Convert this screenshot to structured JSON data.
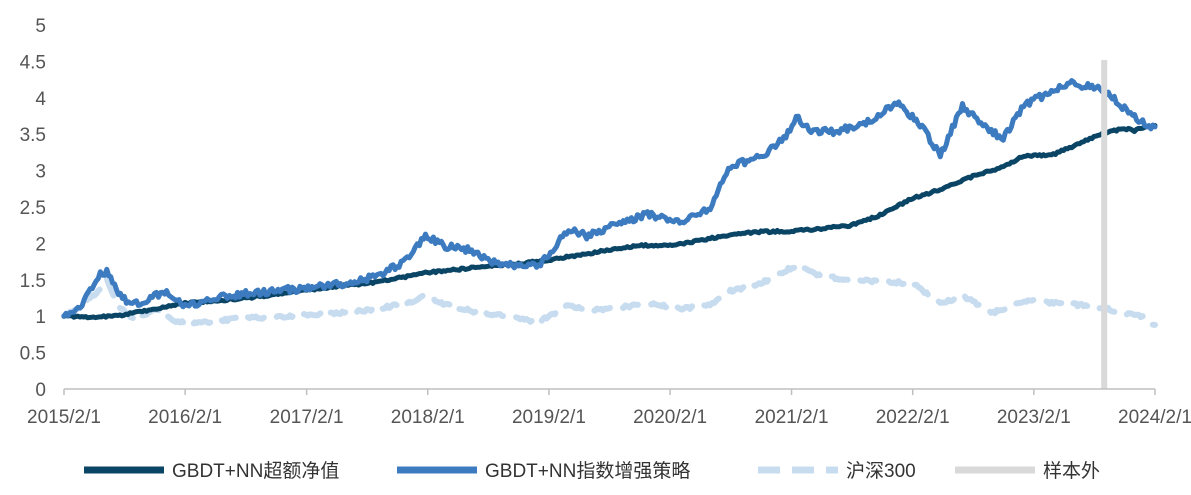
{
  "chart_data": {
    "type": "line",
    "title": "",
    "xlabel": "",
    "ylabel": "",
    "x_tick_labels": [
      "2015/2/1",
      "2016/2/1",
      "2017/2/1",
      "2018/2/1",
      "2019/2/1",
      "2020/2/1",
      "2021/2/1",
      "2022/2/1",
      "2023/2/1",
      "2024/2/1"
    ],
    "x_tick_dates": [
      "2015-02-01",
      "2016-02-01",
      "2017-02-01",
      "2018-02-01",
      "2019-02-01",
      "2020-02-01",
      "2021-02-01",
      "2022-02-01",
      "2023-02-01",
      "2024-02-01"
    ],
    "x_range": [
      "2015-02-01",
      "2024-02-01"
    ],
    "ylim": [
      0,
      5
    ],
    "y_ticks": [
      0,
      0.5,
      1,
      1.5,
      2,
      2.5,
      3,
      3.5,
      4,
      4.5,
      5
    ],
    "grid": false,
    "legend_position": "bottom",
    "series": [
      {
        "name": "GBDT+NN超额净值",
        "color": "#0b4566",
        "style": "solid",
        "points": [
          [
            "2015-02-01",
            1.0
          ],
          [
            "2015-05-01",
            0.98
          ],
          [
            "2015-08-01",
            1.02
          ],
          [
            "2015-11-01",
            1.1
          ],
          [
            "2016-02-01",
            1.18
          ],
          [
            "2016-05-01",
            1.21
          ],
          [
            "2016-08-01",
            1.25
          ],
          [
            "2016-11-01",
            1.3
          ],
          [
            "2017-02-01",
            1.36
          ],
          [
            "2017-05-01",
            1.41
          ],
          [
            "2017-08-01",
            1.45
          ],
          [
            "2017-11-01",
            1.52
          ],
          [
            "2018-02-01",
            1.6
          ],
          [
            "2018-05-01",
            1.64
          ],
          [
            "2018-08-01",
            1.69
          ],
          [
            "2018-11-01",
            1.72
          ],
          [
            "2019-02-01",
            1.77
          ],
          [
            "2019-05-01",
            1.84
          ],
          [
            "2019-08-01",
            1.91
          ],
          [
            "2019-11-01",
            1.97
          ],
          [
            "2020-02-01",
            1.97
          ],
          [
            "2020-05-01",
            2.04
          ],
          [
            "2020-08-01",
            2.12
          ],
          [
            "2020-11-01",
            2.16
          ],
          [
            "2021-02-01",
            2.17
          ],
          [
            "2021-05-01",
            2.2
          ],
          [
            "2021-08-01",
            2.25
          ],
          [
            "2021-11-01",
            2.4
          ],
          [
            "2022-02-01",
            2.62
          ],
          [
            "2022-05-01",
            2.75
          ],
          [
            "2022-08-01",
            2.92
          ],
          [
            "2022-11-01",
            3.05
          ],
          [
            "2023-01-01",
            3.2
          ],
          [
            "2023-04-01",
            3.22
          ],
          [
            "2023-07-01",
            3.4
          ],
          [
            "2023-09-01",
            3.52
          ],
          [
            "2023-11-01",
            3.58
          ],
          [
            "2023-12-01",
            3.55
          ],
          [
            "2024-01-01",
            3.6
          ],
          [
            "2024-02-01",
            3.62
          ]
        ]
      },
      {
        "name": "GBDT+NN指数增强策略",
        "color": "#3c7bbf",
        "style": "solid",
        "points": [
          [
            "2015-02-01",
            1.0
          ],
          [
            "2015-03-15",
            1.1
          ],
          [
            "2015-04-15",
            1.3
          ],
          [
            "2015-05-15",
            1.55
          ],
          [
            "2015-06-10",
            1.62
          ],
          [
            "2015-07-15",
            1.3
          ],
          [
            "2015-08-20",
            1.15
          ],
          [
            "2015-10-01",
            1.2
          ],
          [
            "2015-12-01",
            1.35
          ],
          [
            "2016-02-01",
            1.12
          ],
          [
            "2016-04-01",
            1.2
          ],
          [
            "2016-06-01",
            1.28
          ],
          [
            "2016-09-01",
            1.32
          ],
          [
            "2016-12-01",
            1.36
          ],
          [
            "2017-03-01",
            1.4
          ],
          [
            "2017-06-01",
            1.45
          ],
          [
            "2017-09-01",
            1.55
          ],
          [
            "2017-12-01",
            1.78
          ],
          [
            "2018-01-25",
            2.1
          ],
          [
            "2018-04-01",
            1.95
          ],
          [
            "2018-06-01",
            1.92
          ],
          [
            "2018-09-01",
            1.72
          ],
          [
            "2018-11-01",
            1.7
          ],
          [
            "2019-01-01",
            1.68
          ],
          [
            "2019-04-01",
            2.18
          ],
          [
            "2019-06-01",
            2.1
          ],
          [
            "2019-09-01",
            2.28
          ],
          [
            "2019-12-01",
            2.4
          ],
          [
            "2020-03-01",
            2.3
          ],
          [
            "2020-06-01",
            2.5
          ],
          [
            "2020-08-01",
            3.05
          ],
          [
            "2020-11-01",
            3.2
          ],
          [
            "2021-01-15",
            3.45
          ],
          [
            "2021-02-15",
            3.75
          ],
          [
            "2021-04-01",
            3.52
          ],
          [
            "2021-07-01",
            3.55
          ],
          [
            "2021-10-01",
            3.7
          ],
          [
            "2021-12-15",
            3.95
          ],
          [
            "2022-03-01",
            3.6
          ],
          [
            "2022-04-25",
            3.2
          ],
          [
            "2022-07-01",
            3.9
          ],
          [
            "2022-09-01",
            3.6
          ],
          [
            "2022-11-01",
            3.45
          ],
          [
            "2023-01-01",
            3.9
          ],
          [
            "2023-04-01",
            4.1
          ],
          [
            "2023-06-01",
            4.2
          ],
          [
            "2023-09-01",
            4.1
          ],
          [
            "2023-11-01",
            3.85
          ],
          [
            "2024-01-01",
            3.65
          ],
          [
            "2024-02-01",
            3.6
          ]
        ]
      },
      {
        "name": "沪深300",
        "color": "#c8dcef",
        "style": "dashed",
        "points": [
          [
            "2015-02-01",
            1.0
          ],
          [
            "2015-03-15",
            1.1
          ],
          [
            "2015-05-15",
            1.35
          ],
          [
            "2015-06-10",
            1.5
          ],
          [
            "2015-07-15",
            1.15
          ],
          [
            "2015-09-01",
            0.95
          ],
          [
            "2015-11-01",
            1.1
          ],
          [
            "2016-01-10",
            0.92
          ],
          [
            "2016-03-01",
            0.9
          ],
          [
            "2016-06-01",
            0.95
          ],
          [
            "2016-09-01",
            0.98
          ],
          [
            "2016-12-01",
            1.0
          ],
          [
            "2017-03-01",
            1.02
          ],
          [
            "2017-06-01",
            1.05
          ],
          [
            "2017-09-01",
            1.1
          ],
          [
            "2017-12-01",
            1.18
          ],
          [
            "2018-01-25",
            1.28
          ],
          [
            "2018-04-01",
            1.15
          ],
          [
            "2018-07-01",
            1.05
          ],
          [
            "2018-10-01",
            1.0
          ],
          [
            "2019-01-01",
            0.92
          ],
          [
            "2019-04-01",
            1.15
          ],
          [
            "2019-06-01",
            1.08
          ],
          [
            "2019-09-01",
            1.12
          ],
          [
            "2019-12-01",
            1.18
          ],
          [
            "2020-03-01",
            1.1
          ],
          [
            "2020-06-01",
            1.15
          ],
          [
            "2020-08-01",
            1.35
          ],
          [
            "2020-11-01",
            1.45
          ],
          [
            "2021-02-15",
            1.7
          ],
          [
            "2021-05-01",
            1.55
          ],
          [
            "2021-08-01",
            1.5
          ],
          [
            "2021-11-01",
            1.48
          ],
          [
            "2022-02-01",
            1.45
          ],
          [
            "2022-04-25",
            1.18
          ],
          [
            "2022-07-01",
            1.28
          ],
          [
            "2022-10-01",
            1.05
          ],
          [
            "2023-01-15",
            1.22
          ],
          [
            "2023-04-01",
            1.18
          ],
          [
            "2023-07-01",
            1.15
          ],
          [
            "2023-10-01",
            1.08
          ],
          [
            "2024-01-01",
            0.98
          ],
          [
            "2024-02-01",
            0.88
          ]
        ]
      }
    ],
    "out_of_sample": {
      "name": "样本外",
      "date": "2023-09-01",
      "color": "#d9d9d9"
    }
  }
}
